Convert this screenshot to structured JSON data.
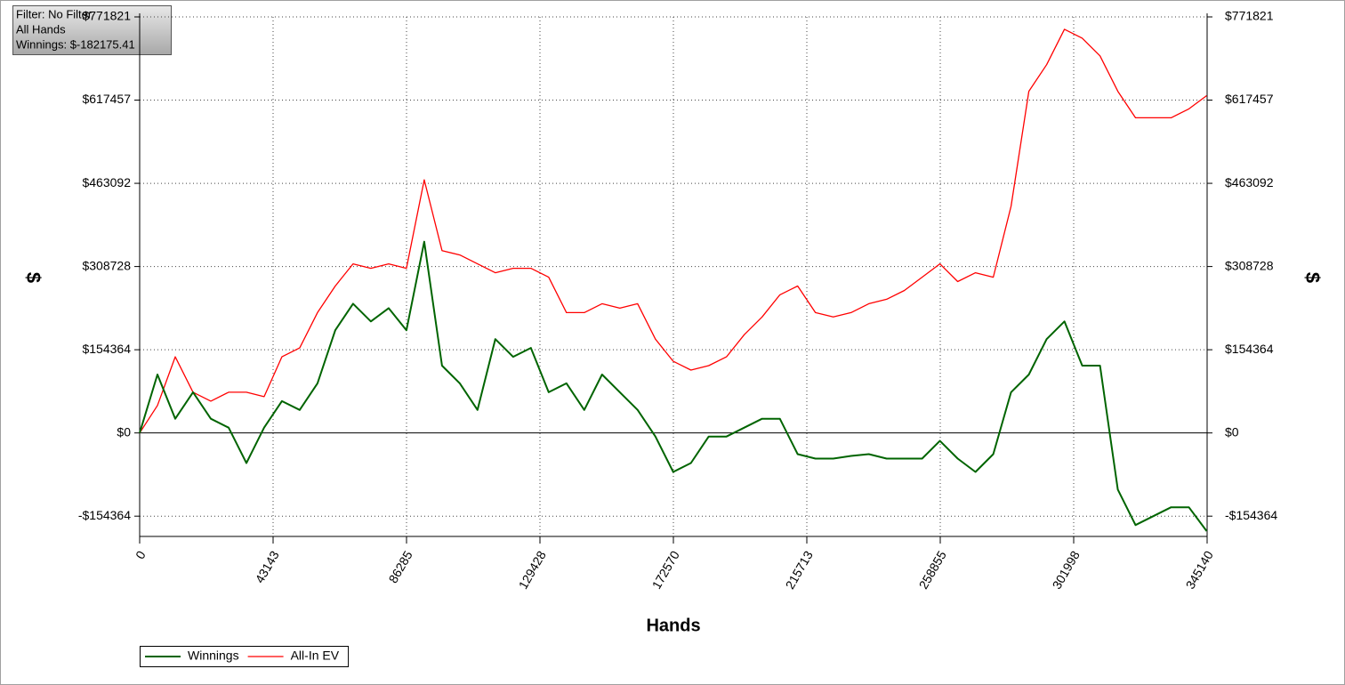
{
  "chart_data": {
    "type": "line",
    "annotations": [
      "Filter: No Filter",
      "All Hands",
      "Winnings: $-182175.41"
    ],
    "xlabel": "Hands",
    "ylabel": "$",
    "y2label": "$",
    "xlim": [
      0,
      345140
    ],
    "xticks": [
      0,
      43143,
      86285,
      129428,
      172570,
      215713,
      258855,
      301998,
      345140
    ],
    "ylim": [
      -192000,
      771821
    ],
    "yticks": [
      {
        "value": -154364,
        "label": "-$154364"
      },
      {
        "value": 0,
        "label": "$0"
      },
      {
        "value": 154364,
        "label": "$154364"
      },
      {
        "value": 308728,
        "label": "$308728"
      },
      {
        "value": 463092,
        "label": "$463092"
      },
      {
        "value": 617457,
        "label": "$617457"
      },
      {
        "value": 771821,
        "label": "$771821"
      }
    ],
    "grid": true,
    "legend": "bottom-left",
    "x": [
      0,
      5750,
      11500,
      17250,
      23000,
      28750,
      34500,
      40250,
      46000,
      51750,
      57500,
      63250,
      69000,
      74750,
      80500,
      86250,
      92000,
      97750,
      103500,
      109250,
      115000,
      120750,
      126500,
      132250,
      138000,
      143750,
      149500,
      155250,
      161000,
      166750,
      172500,
      178250,
      184000,
      189750,
      195500,
      201250,
      207000,
      212750,
      218500,
      224250,
      230000,
      235750,
      241500,
      247250,
      253000,
      258750,
      264500,
      270250,
      276000,
      281750,
      287500,
      293250,
      299000,
      304750,
      310500,
      316250,
      322000,
      327750,
      333500,
      339250,
      345000
    ],
    "series": [
      {
        "name": "Winnings",
        "color": "#006400",
        "values": [
          0,
          108400,
          26300,
          75500,
          26300,
          9900,
          -55800,
          9900,
          59100,
          42700,
          92000,
          190500,
          239800,
          206900,
          231500,
          190500,
          354700,
          124800,
          92000,
          42700,
          174100,
          141200,
          157700,
          75500,
          92000,
          42700,
          108400,
          75500,
          42700,
          -6600,
          -72300,
          -55800,
          -6600,
          -6600,
          9900,
          26300,
          26300,
          -39400,
          -47600,
          -47600,
          -42700,
          -39400,
          -47600,
          -47600,
          -47600,
          -14800,
          -47600,
          -72300,
          -39400,
          75500,
          108400,
          174100,
          206900,
          124800,
          124800,
          -105100,
          -170800,
          -154400,
          -137900,
          -137900,
          -182175
        ]
      },
      {
        "name": "All-In EV",
        "color": "#ff0000",
        "values": [
          0,
          50900,
          141200,
          75500,
          59100,
          75500,
          75500,
          67300,
          141200,
          157700,
          223300,
          272600,
          313700,
          305400,
          313700,
          305400,
          469700,
          338300,
          330100,
          313700,
          297200,
          305400,
          305400,
          289000,
          223300,
          223300,
          239800,
          231500,
          239800,
          174100,
          133000,
          116600,
          124800,
          141200,
          182300,
          215100,
          256200,
          272600,
          223300,
          215100,
          223300,
          239800,
          248000,
          264400,
          289000,
          313700,
          280800,
          297200,
          289000,
          420400,
          633900,
          683200,
          748800,
          732400,
          699600,
          633900,
          584600,
          584600,
          584600,
          601100,
          625700
        ]
      }
    ]
  }
}
